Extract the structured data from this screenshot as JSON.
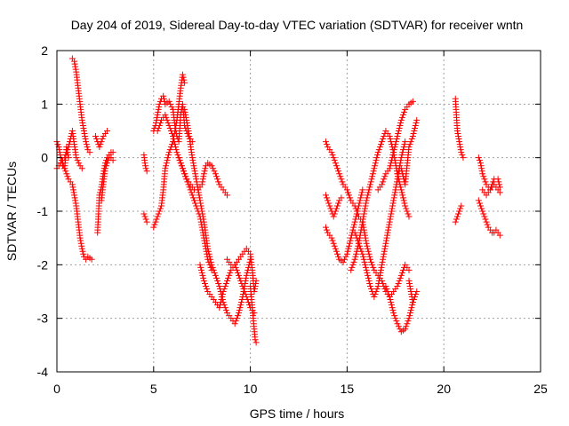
{
  "chart_data": {
    "type": "scatter",
    "title": "Day 204 of 2019, Sidereal Day-to-day VTEC variation (SDTVAR) for receiver wntn",
    "xlabel": "GPS time / hours",
    "ylabel": "SDTVAR / TECUs",
    "xlim": [
      0,
      25
    ],
    "ylim": [
      -4,
      2
    ],
    "xticks": [
      0,
      5,
      10,
      15,
      20,
      25
    ],
    "yticks": [
      -4,
      -3,
      -2,
      -1,
      0,
      1,
      2
    ],
    "grid": true,
    "marker": "plus",
    "color": "#ff0000",
    "tracks": [
      {
        "name": "trace-1",
        "x": [
          0.0,
          0.1,
          0.2,
          0.3,
          0.4,
          0.5,
          0.6
        ],
        "y": [
          0.3,
          0.2,
          0.0,
          -0.1,
          -0.2,
          0.2,
          0.0
        ]
      },
      {
        "name": "trace-2",
        "x": [
          0.0,
          0.2,
          0.4,
          0.6,
          0.8,
          1.0,
          1.2,
          1.3
        ],
        "y": [
          -0.2,
          -0.1,
          0.0,
          0.2,
          0.5,
          0.0,
          -0.15,
          -0.2
        ]
      },
      {
        "name": "trace-3",
        "x": [
          0.2,
          0.4,
          0.6,
          0.8,
          1.0,
          1.1,
          1.2,
          1.3,
          1.4,
          1.5,
          1.6,
          1.8
        ],
        "y": [
          -0.1,
          -0.2,
          -0.4,
          -0.5,
          -0.9,
          -1.2,
          -1.5,
          -1.7,
          -1.85,
          -1.9,
          -1.85,
          -1.9
        ]
      },
      {
        "name": "trace-4",
        "x": [
          0.8,
          0.9,
          1.0,
          1.1,
          1.2,
          1.3,
          1.4,
          1.5,
          1.6,
          1.7
        ],
        "y": [
          1.85,
          1.8,
          1.6,
          1.3,
          1.0,
          0.7,
          0.5,
          0.3,
          0.15,
          0.1
        ]
      },
      {
        "name": "trace-5",
        "x": [
          2.0,
          2.1,
          2.2,
          2.3,
          2.4,
          2.5,
          2.6
        ],
        "y": [
          0.4,
          0.3,
          0.2,
          0.3,
          0.4,
          0.45,
          0.5
        ]
      },
      {
        "name": "trace-6",
        "x": [
          2.1,
          2.2,
          2.3,
          2.4,
          2.5,
          2.6,
          2.7,
          2.8,
          2.9
        ],
        "y": [
          -1.4,
          -0.7,
          -0.55,
          -0.3,
          -0.1,
          0.0,
          0.05,
          0.1,
          0.1
        ]
      },
      {
        "name": "trace-7",
        "x": [
          2.3,
          2.4,
          2.5,
          2.6,
          2.7,
          2.8,
          2.9
        ],
        "y": [
          -0.8,
          -0.5,
          -0.2,
          -0.1,
          0.0,
          0.0,
          -0.05
        ]
      },
      {
        "name": "trace-8",
        "x": [
          4.5,
          4.55,
          4.6,
          4.65
        ],
        "y": [
          0.05,
          -0.1,
          -0.2,
          -0.25
        ]
      },
      {
        "name": "trace-9",
        "x": [
          4.5,
          4.55,
          4.6,
          4.65
        ],
        "y": [
          -1.05,
          -1.1,
          -1.15,
          -1.2
        ]
      },
      {
        "name": "trace-10",
        "x": [
          5.0,
          5.1,
          5.2,
          5.3,
          5.4,
          5.5,
          5.6,
          5.8,
          6.0,
          6.1,
          6.2,
          6.3,
          6.4,
          6.5,
          6.6,
          6.7,
          6.8,
          7.0
        ],
        "y": [
          0.5,
          0.6,
          0.8,
          1.0,
          1.1,
          1.15,
          1.0,
          1.05,
          0.9,
          0.6,
          0.4,
          0.3,
          0.8,
          1.0,
          0.6,
          0.5,
          0.4,
          0.3
        ]
      },
      {
        "name": "trace-11",
        "x": [
          5.0,
          5.2,
          5.4,
          5.5,
          5.6,
          5.8,
          6.0,
          6.2,
          6.3,
          6.4,
          6.5,
          6.6
        ],
        "y": [
          -1.3,
          -1.1,
          -0.9,
          -0.6,
          -0.2,
          0.1,
          0.3,
          0.7,
          1.0,
          1.3,
          1.55,
          1.4
        ]
      },
      {
        "name": "trace-12",
        "x": [
          5.2,
          5.4,
          5.6,
          5.8,
          6.0,
          6.2,
          6.4,
          6.6,
          6.8,
          7.0,
          7.2,
          7.4,
          7.6,
          7.8,
          8.0
        ],
        "y": [
          0.5,
          0.7,
          0.8,
          0.6,
          0.4,
          0.1,
          -0.1,
          -0.3,
          -0.5,
          -0.7,
          -0.9,
          -1.1,
          -1.5,
          -1.9,
          -2.1
        ]
      },
      {
        "name": "trace-13",
        "x": [
          6.3,
          6.5,
          6.7,
          6.9,
          7.1,
          7.3,
          7.5,
          7.6,
          7.7,
          7.8,
          8.0,
          8.2,
          8.4,
          8.6,
          8.8
        ],
        "y": [
          0.0,
          -0.2,
          -0.4,
          -0.5,
          -0.6,
          -0.6,
          -0.5,
          -0.3,
          -0.15,
          -0.1,
          -0.15,
          -0.3,
          -0.5,
          -0.6,
          -0.7
        ]
      },
      {
        "name": "trace-14",
        "x": [
          6.6,
          6.8,
          7.0,
          7.2,
          7.4,
          7.6,
          7.8,
          8.0,
          8.2,
          8.4,
          8.6,
          8.8,
          9.0,
          9.2,
          9.4,
          9.6,
          9.8,
          10.0
        ],
        "y": [
          0.9,
          0.5,
          0.0,
          -0.4,
          -0.8,
          -1.2,
          -1.7,
          -2.0,
          -2.2,
          -2.4,
          -2.7,
          -2.9,
          -3.0,
          -3.1,
          -2.9,
          -2.6,
          -2.2,
          -1.9
        ]
      },
      {
        "name": "trace-15",
        "x": [
          7.4,
          7.6,
          7.8,
          8.0,
          8.2,
          8.4,
          8.6,
          8.8,
          9.0,
          9.2,
          9.4,
          9.6,
          9.8,
          10.0,
          10.2
        ],
        "y": [
          -2.0,
          -2.3,
          -2.5,
          -2.6,
          -2.7,
          -2.8,
          -2.5,
          -2.3,
          -2.1,
          -2.0,
          -2.2,
          -2.4,
          -2.6,
          -2.8,
          -2.9
        ]
      },
      {
        "name": "trace-16",
        "x": [
          8.8,
          9.0,
          9.2,
          9.4,
          9.6,
          9.8,
          10.0,
          10.1,
          10.2,
          10.3
        ],
        "y": [
          -1.9,
          -2.0,
          -2.0,
          -1.9,
          -1.8,
          -1.7,
          -1.8,
          -2.1,
          -2.5,
          -2.3
        ]
      },
      {
        "name": "trace-17",
        "x": [
          10.0,
          10.05,
          10.1,
          10.15,
          10.2,
          10.25,
          10.3
        ],
        "y": [
          -2.4,
          -2.6,
          -2.8,
          -3.0,
          -3.2,
          -3.4,
          -3.45
        ]
      },
      {
        "name": "trace-18",
        "x": [
          13.9,
          14.0,
          14.2,
          14.4,
          14.6,
          14.8,
          15.0,
          15.2,
          15.4,
          15.6,
          15.8,
          16.0,
          16.2,
          16.4,
          16.6,
          16.8,
          17.0,
          17.2,
          17.4,
          17.6,
          17.8,
          18.0,
          18.2
        ],
        "y": [
          0.3,
          0.2,
          0.1,
          -0.1,
          -0.3,
          -0.5,
          -0.6,
          -0.8,
          -0.9,
          -1.1,
          -1.2,
          -1.6,
          -1.9,
          -2.1,
          -2.2,
          -2.3,
          -2.5,
          -2.6,
          -2.5,
          -2.4,
          -2.2,
          -2.0,
          -2.1
        ]
      },
      {
        "name": "trace-19",
        "x": [
          13.9,
          14.0,
          14.1,
          14.2,
          14.3,
          14.4,
          14.5,
          14.6,
          14.7
        ],
        "y": [
          -0.7,
          -0.8,
          -0.9,
          -1.0,
          -1.1,
          -1.0,
          -0.9,
          -0.8,
          -0.75
        ]
      },
      {
        "name": "trace-20",
        "x": [
          13.9,
          14.0,
          14.2,
          14.4,
          14.6,
          14.8,
          15.0,
          15.2,
          15.4,
          15.6,
          15.8
        ],
        "y": [
          -1.3,
          -1.4,
          -1.5,
          -1.7,
          -1.9,
          -1.95,
          -1.8,
          -1.5,
          -1.2,
          -0.9,
          -0.6
        ]
      },
      {
        "name": "trace-21",
        "x": [
          15.2,
          15.4,
          15.6,
          15.8,
          16.0,
          16.2,
          16.4,
          16.6,
          16.8,
          17.0,
          17.2,
          17.4,
          17.6,
          17.8,
          18.0,
          18.2
        ],
        "y": [
          -2.1,
          -1.9,
          -1.6,
          -1.2,
          -0.8,
          -0.5,
          -0.2,
          0.1,
          0.3,
          0.5,
          0.4,
          0.1,
          -0.3,
          -0.6,
          -0.9,
          -1.1
        ]
      },
      {
        "name": "trace-22",
        "x": [
          15.4,
          15.6,
          15.8,
          16.0,
          16.2,
          16.4,
          16.6,
          16.8,
          17.0,
          17.2,
          17.4,
          17.6,
          17.8,
          18.0
        ],
        "y": [
          -1.4,
          -1.6,
          -1.8,
          -2.1,
          -2.4,
          -2.6,
          -2.4,
          -2.0,
          -1.6,
          -1.2,
          -0.8,
          -0.4,
          0.0,
          0.3
        ]
      },
      {
        "name": "trace-23",
        "x": [
          16.6,
          16.8,
          17.0,
          17.2,
          17.4,
          17.6,
          17.8,
          18.0,
          18.2,
          18.4
        ],
        "y": [
          -0.6,
          -0.5,
          -0.3,
          -0.2,
          0.1,
          0.4,
          0.7,
          0.9,
          1.0,
          1.05
        ]
      },
      {
        "name": "trace-24",
        "x": [
          17.0,
          17.2,
          17.4,
          17.6,
          17.8,
          18.0,
          18.2,
          18.4
        ],
        "y": [
          -2.4,
          -2.6,
          -2.9,
          -3.1,
          -3.25,
          -3.2,
          -3.0,
          -2.7
        ]
      },
      {
        "name": "trace-25",
        "x": [
          17.6,
          17.8,
          18.0,
          18.2,
          18.4,
          18.6
        ],
        "y": [
          -0.3,
          -0.2,
          -0.5,
          0.2,
          0.4,
          0.7
        ]
      },
      {
        "name": "trace-26",
        "x": [
          18.2,
          18.3,
          18.4,
          18.5,
          18.6
        ],
        "y": [
          -2.3,
          -2.5,
          -2.7,
          -2.6,
          -2.5
        ]
      },
      {
        "name": "trace-27",
        "x": [
          20.6,
          20.7,
          20.8,
          20.9,
          21.0
        ],
        "y": [
          1.1,
          0.5,
          0.3,
          0.1,
          0.0
        ]
      },
      {
        "name": "trace-28",
        "x": [
          20.6,
          20.7,
          20.8,
          20.9
        ],
        "y": [
          -1.2,
          -1.1,
          -1.0,
          -0.9
        ]
      },
      {
        "name": "trace-29",
        "x": [
          21.8,
          21.9,
          22.0,
          22.1,
          22.2,
          22.3,
          22.4,
          22.5,
          22.6,
          22.7,
          22.8,
          22.9
        ],
        "y": [
          -0.8,
          -0.9,
          -1.0,
          -1.1,
          -1.2,
          -1.3,
          -1.35,
          -1.4,
          -1.4,
          -1.35,
          -1.4,
          -1.45
        ]
      },
      {
        "name": "trace-30",
        "x": [
          21.8,
          21.9,
          22.0,
          22.2,
          22.4,
          22.6,
          22.8,
          22.9
        ],
        "y": [
          0.0,
          -0.1,
          -0.3,
          -0.5,
          -0.6,
          -0.5,
          -0.6,
          -0.65
        ]
      },
      {
        "name": "trace-31",
        "x": [
          22.0,
          22.2,
          22.4,
          22.6,
          22.8,
          22.9
        ],
        "y": [
          -0.6,
          -0.7,
          -0.6,
          -0.4,
          -0.4,
          -0.55
        ]
      }
    ]
  }
}
